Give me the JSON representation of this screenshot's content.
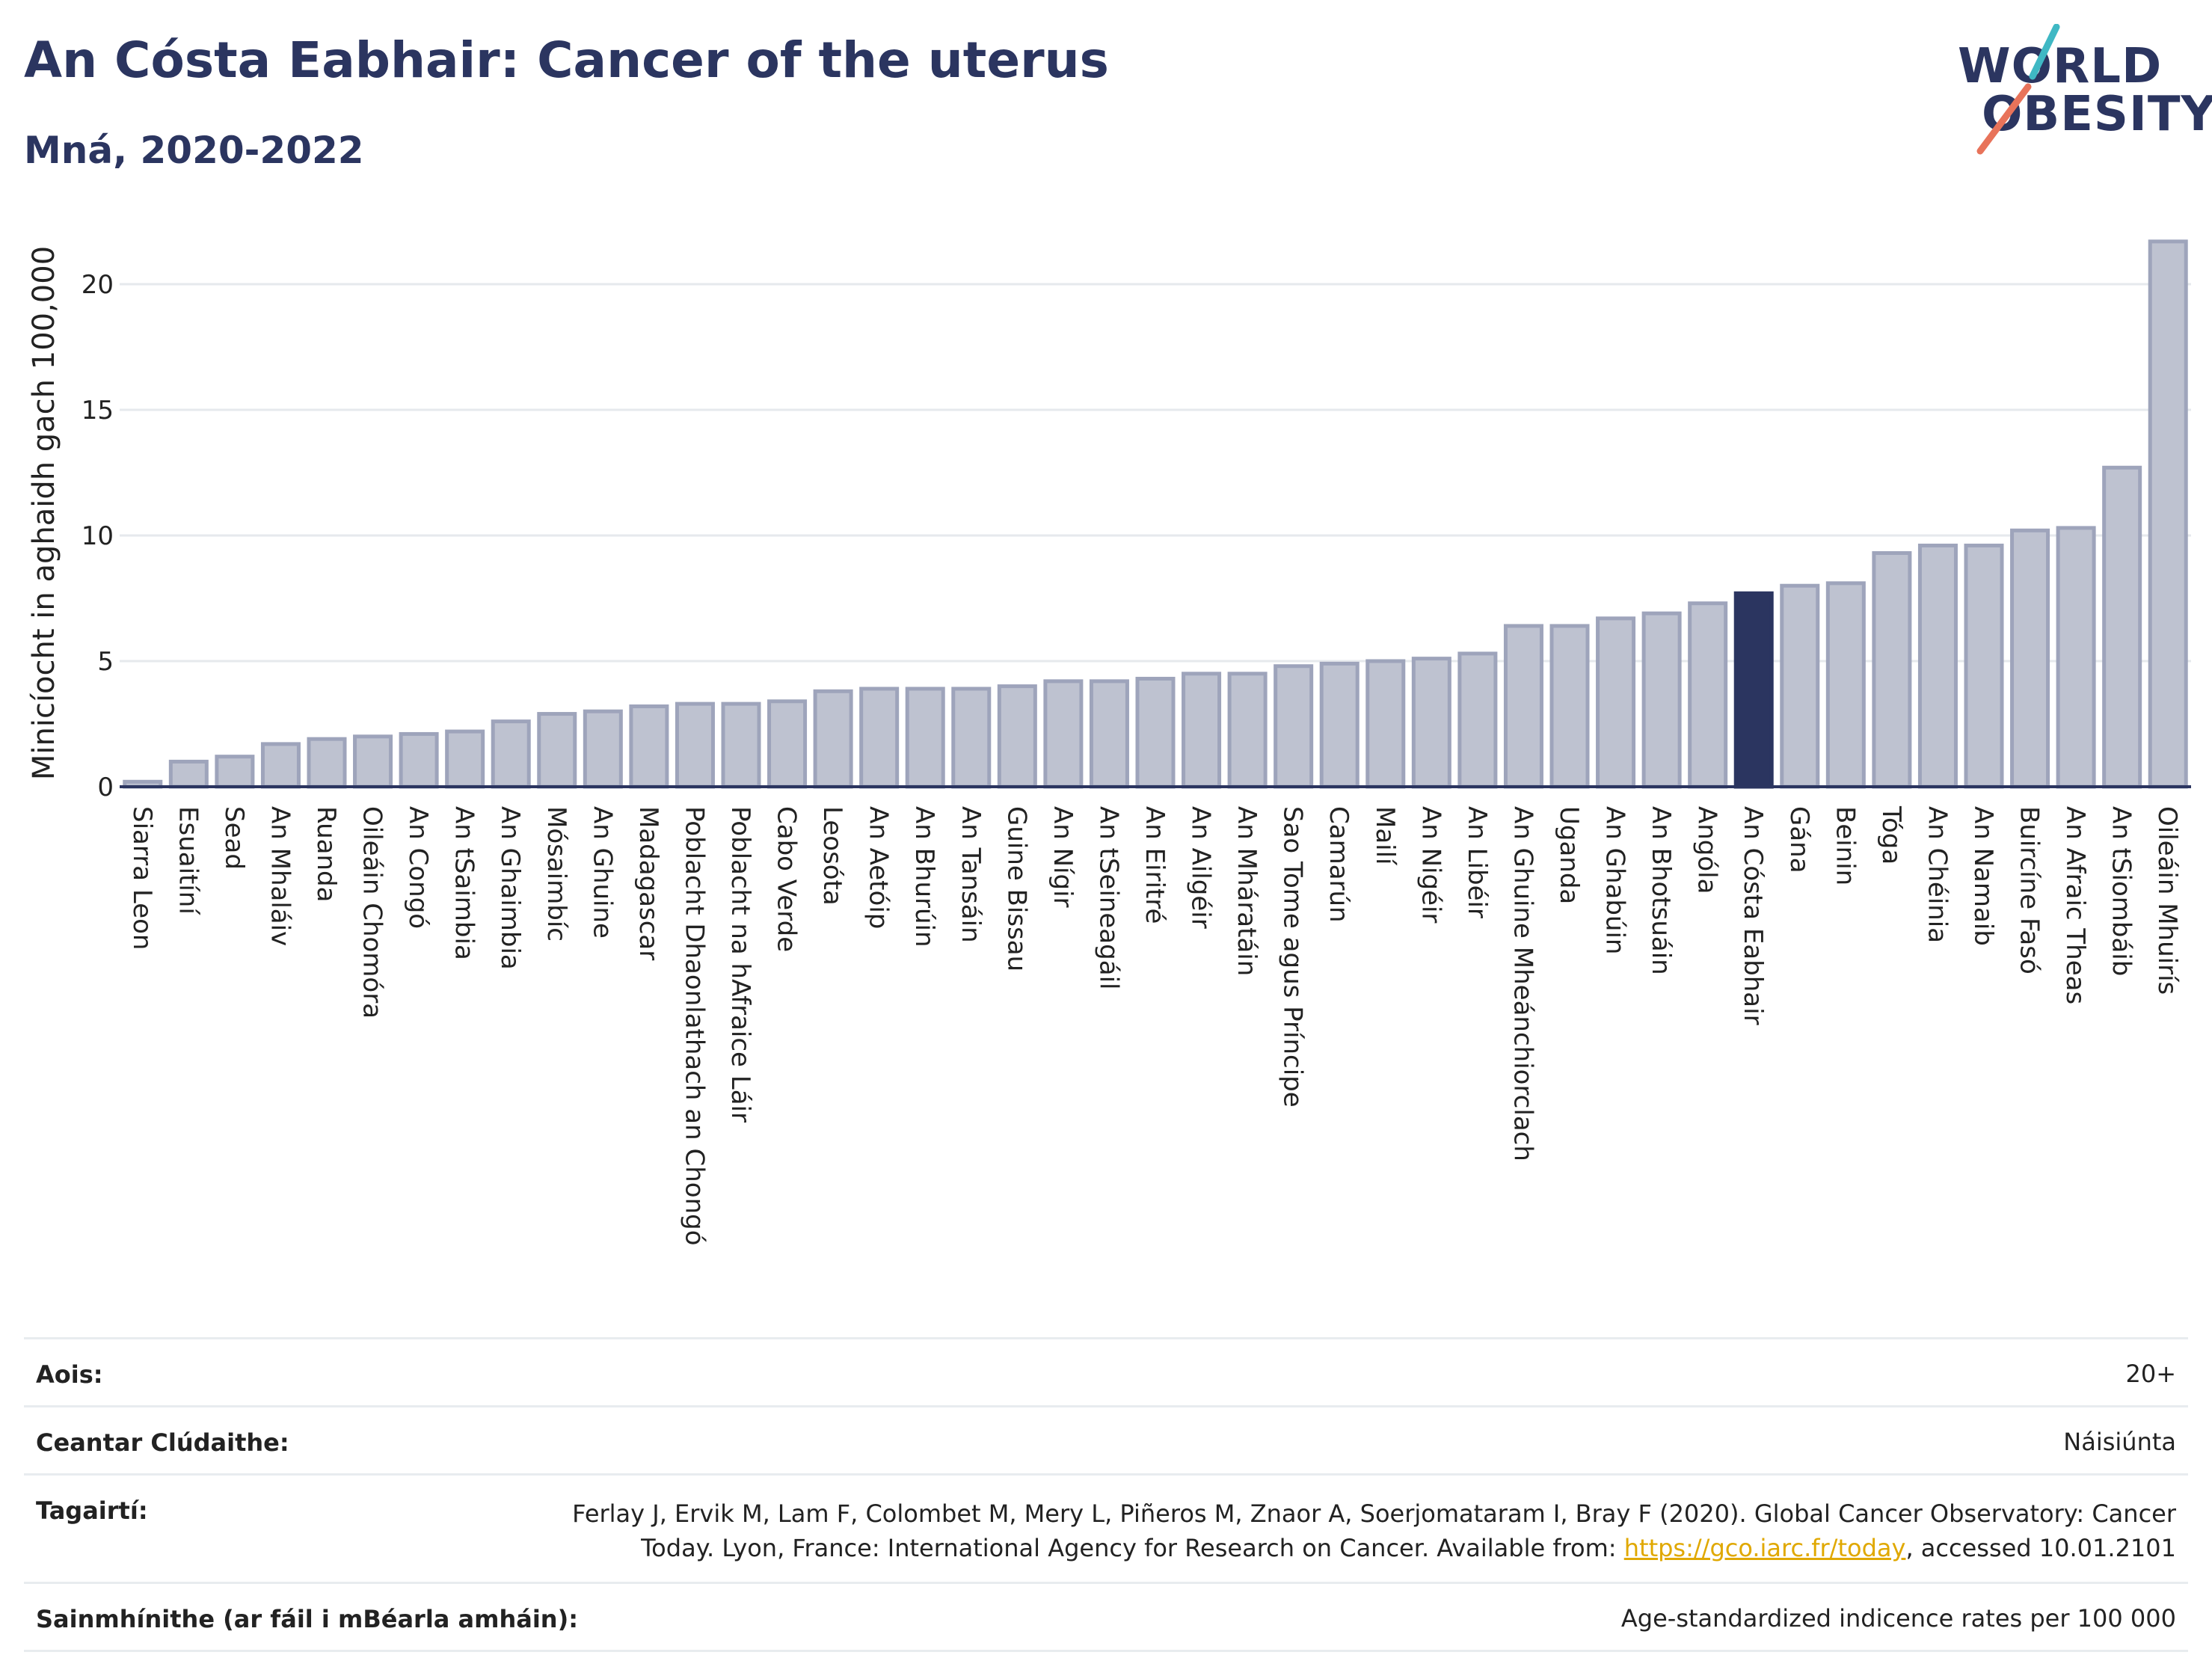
{
  "header": {
    "title": "An Cósta Eabhair: Cancer of the uterus",
    "subtitle": "Mná, 2020-2022"
  },
  "logo": {
    "line1": "WORLD",
    "line2": "OBESITY",
    "slash_colors": [
      "#3fb8c4",
      "#e8735a"
    ]
  },
  "colors": {
    "bar": "#bec2d0",
    "bar_edge": "#9ea4bb",
    "highlight": "#2b3560",
    "grid": "#e6e9ed",
    "axis": "#2b3560"
  },
  "chart_data": {
    "type": "bar",
    "ylabel": "Minicíocht in aghaidh gach 100,000",
    "ylim": [
      0,
      22
    ],
    "yticks": [
      0,
      5,
      10,
      15,
      20
    ],
    "highlight": "An Cósta Eabhair",
    "categories": [
      "Siarra Leon",
      "Esuaitíní",
      "Sead",
      "An Mhaláiv",
      "Ruanda",
      "Oileáin Chomóra",
      "An Congó",
      "An tSaimbia",
      "An Ghaimbia",
      "Mósaimbíc",
      "An Ghuine",
      "Madagascar",
      "Poblacht Dhaonlathach an Chongó",
      "Poblacht na hAfraice Láir",
      "Cabo Verde",
      "Leosóta",
      "An Aetóip",
      "An Bhurúin",
      "An Tansáin",
      "Guine Bissau",
      "An Nígir",
      "An tSeineagáil",
      "An Eiritré",
      "An Ailgéir",
      "An Mháratáin",
      "Sao Tome agus Príncipe",
      "Camarún",
      "Mailí",
      "An Nigéir",
      "An Libéir",
      "An Ghuine Mheánchiorclach",
      "Uganda",
      "An Ghabúin",
      "An Bhotsuáin",
      "Angóla",
      "An Cósta Eabhair",
      "Gána",
      "Beinin",
      "Tóga",
      "An Chéinia",
      "An Namaib",
      "Buircíne Fasó",
      "An Afraic Theas",
      "An tSiombáib",
      "Oileáin Mhuirís"
    ],
    "values": [
      0.2,
      1.0,
      1.2,
      1.7,
      1.9,
      2.0,
      2.1,
      2.2,
      2.6,
      2.9,
      3.0,
      3.2,
      3.3,
      3.3,
      3.4,
      3.8,
      3.9,
      3.9,
      3.9,
      4.0,
      4.2,
      4.2,
      4.3,
      4.5,
      4.5,
      4.8,
      4.9,
      5.0,
      5.1,
      5.3,
      6.4,
      6.4,
      6.7,
      6.9,
      7.3,
      7.7,
      8.0,
      8.1,
      9.3,
      9.6,
      9.6,
      10.2,
      10.3,
      12.7,
      21.7
    ]
  },
  "footer": {
    "rows": [
      {
        "label": "Aois:",
        "value": "20+"
      },
      {
        "label": "Ceantar Clúdaithe:",
        "value": "Náisiúnta"
      },
      {
        "label": "Tagairtí:",
        "value_line1": "Ferlay J, Ervik M, Lam F, Colombet M, Mery L, Piñeros M, Znaor A, Soerjomataram I, Bray F (2020). Global Cancer Observatory: Cancer",
        "value_line2_pre": "Today. Lyon, France: International Agency for Research on Cancer. Available from: ",
        "value_link": "https://gco.iarc.fr/today",
        "value_line2_post": ", accessed 10.01.2101"
      },
      {
        "label": "Sainmhínithe (ar fáil i mBéarla amháin):",
        "value": "Age-standardized indicence rates per 100 000"
      }
    ]
  }
}
